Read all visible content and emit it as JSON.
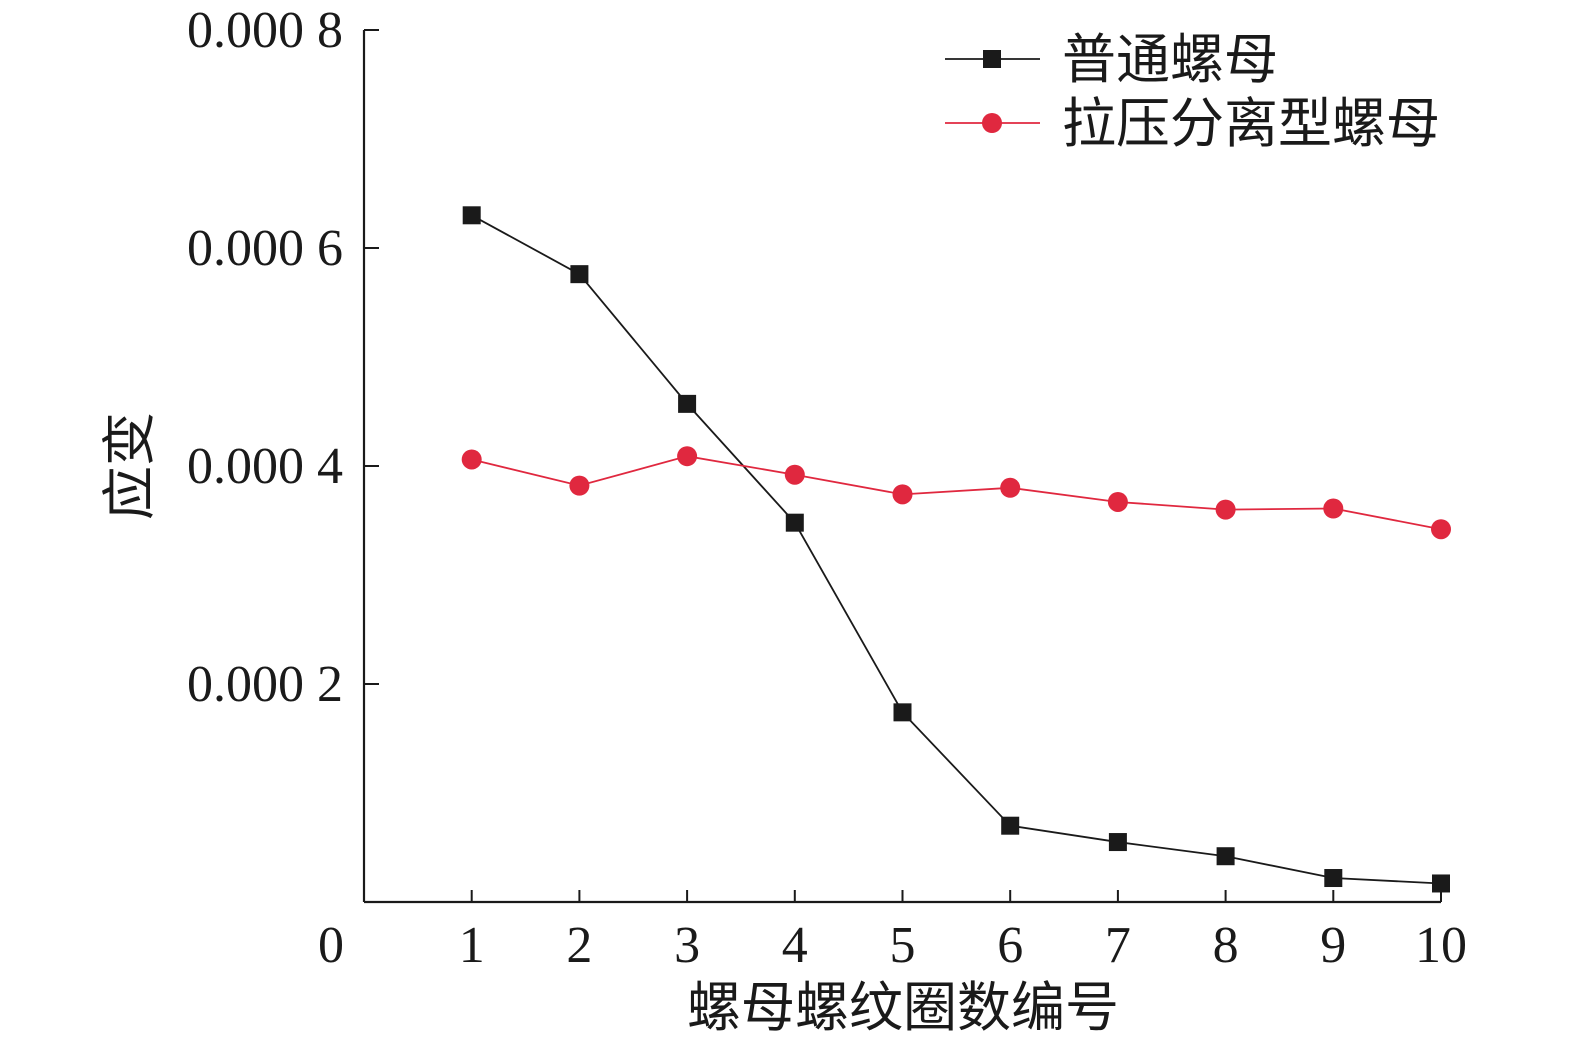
{
  "chart_data": {
    "type": "line",
    "title": "",
    "xlabel": "螺母螺纹圈数编号",
    "ylabel": "应变",
    "x": [
      1,
      2,
      3,
      4,
      5,
      6,
      7,
      8,
      9,
      10
    ],
    "xlim": [
      0,
      10
    ],
    "ylim": [
      0,
      0.0008
    ],
    "x_ticks": [
      1,
      2,
      3,
      4,
      5,
      6,
      7,
      8,
      9,
      10
    ],
    "y_ticks": [
      0.0002,
      0.0004,
      0.0006,
      0.0008
    ],
    "origin_label": "0",
    "x_tick_labels": [
      "1",
      "2",
      "3",
      "4",
      "5",
      "6",
      "7",
      "8",
      "9",
      "10"
    ],
    "y_tick_labels": [
      "0.000 2",
      "0.000 4",
      "0.000 6",
      "0.000 8"
    ],
    "grid": false,
    "legend_position": "top-right",
    "series": [
      {
        "name": "普通螺母",
        "color": "#1a1a1a",
        "marker": "square",
        "values": [
          0.00063,
          0.000576,
          0.000457,
          0.000348,
          0.000174,
          7e-05,
          5.5e-05,
          4.2e-05,
          2.2e-05,
          1.7e-05
        ]
      },
      {
        "name": "拉压分离型螺母",
        "color": "#e0283f",
        "marker": "circle",
        "values": [
          0.000406,
          0.000382,
          0.000409,
          0.000392,
          0.000374,
          0.00038,
          0.000367,
          0.00036,
          0.000361,
          0.000342
        ]
      }
    ]
  }
}
